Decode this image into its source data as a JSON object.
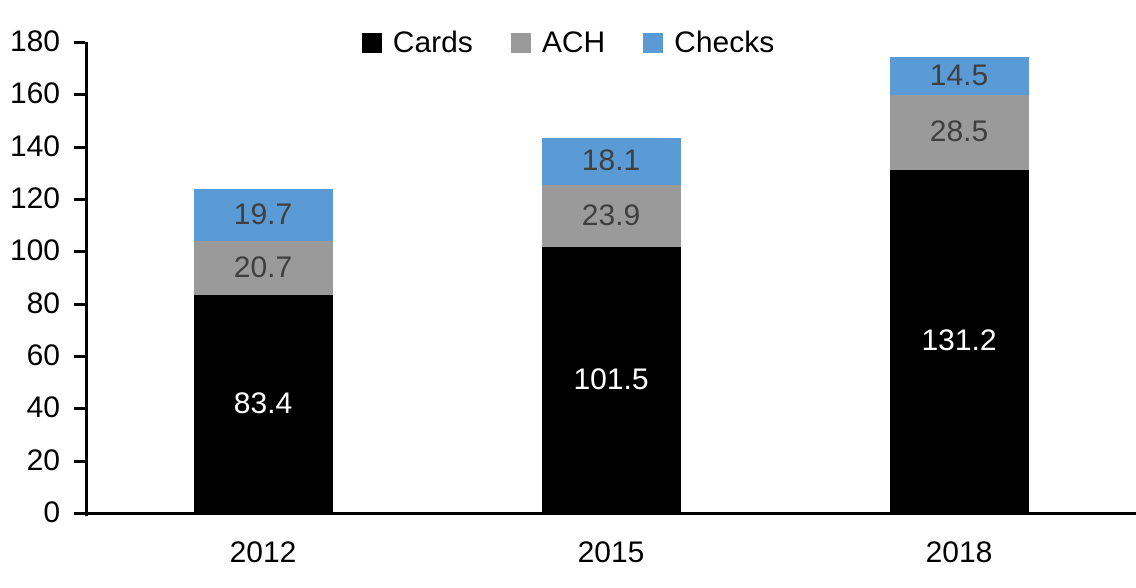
{
  "chart_data": {
    "type": "bar",
    "stacked": true,
    "title": "",
    "xlabel": "",
    "ylabel": "",
    "categories": [
      "2012",
      "2015",
      "2018"
    ],
    "series": [
      {
        "name": "Cards",
        "color": "#000000",
        "label_color": "#ffffff",
        "values": [
          83.4,
          101.5,
          131.2
        ]
      },
      {
        "name": "ACH",
        "color": "#9A9A9A",
        "label_color": "#3f3f3f",
        "values": [
          20.7,
          23.9,
          28.5
        ]
      },
      {
        "name": "Checks",
        "color": "#5B9BD5",
        "label_color": "#3f3f3f",
        "values": [
          19.7,
          18.1,
          14.5
        ]
      }
    ],
    "totals": [
      123.8,
      143.5,
      174.2
    ],
    "ylim": [
      0,
      180
    ],
    "ytick_step": 20,
    "yticks": [
      0,
      20,
      40,
      60,
      80,
      100,
      120,
      140,
      160,
      180
    ],
    "grid": "off",
    "legend_position": "top-center",
    "axis_color": "#000000"
  }
}
